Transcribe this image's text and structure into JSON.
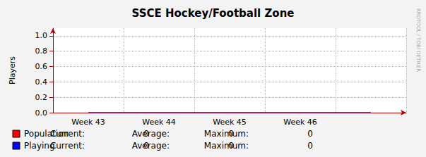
{
  "chart_data": {
    "type": "line",
    "title": "SSCE Hockey/Football Zone",
    "y_label": "Players",
    "watermark": "RRDTOOL / TOBI OETIKER",
    "categories": [
      "Week 43",
      "Week 44",
      "Week 45",
      "Week 46",
      null
    ],
    "series": [
      {
        "name": "Population",
        "color": "#ff0000",
        "values": [
          0,
          0,
          0,
          0,
          0
        ],
        "stats": [
          0,
          0,
          0
        ]
      },
      {
        "name": "Playing",
        "color": "#0000ff",
        "values": [
          0,
          0,
          0,
          0,
          0
        ],
        "stats": [
          0,
          0,
          0
        ]
      }
    ],
    "stat_labels": [
      "Current:",
      "Average:",
      "Maximum:"
    ],
    "ylim": [
      0,
      1.1
    ],
    "yticks": [
      {
        "value": 0,
        "label": "0.0"
      },
      {
        "value": 0.2,
        "label": "0.2"
      },
      {
        "value": 0.4,
        "label": "0.4"
      },
      {
        "value": 0.6,
        "label": "0.6"
      },
      {
        "value": 0.8,
        "label": "0.8"
      },
      {
        "value": 1,
        "label": "1.0"
      }
    ],
    "grid": true,
    "legend": "bottom-left"
  }
}
